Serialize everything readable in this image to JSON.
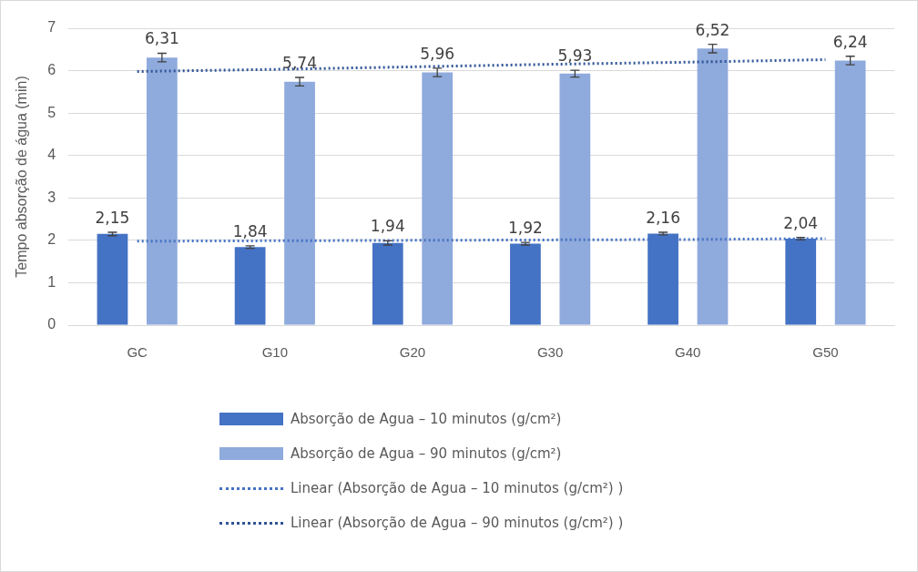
{
  "chart_data": {
    "type": "bar",
    "ylabel": "Tempo absorção de água (min)",
    "categories": [
      "GC",
      "G10",
      "G20",
      "G30",
      "G40",
      "G50"
    ],
    "series": [
      {
        "name": "Absorção de Agua – 10 minutos (g/cm²)",
        "color": "#4472c4",
        "values": [
          2.15,
          1.84,
          1.94,
          1.92,
          2.16,
          2.04
        ],
        "value_labels": [
          "2,15",
          "1,84",
          "1,94",
          "1,92",
          "2,16",
          "2,04"
        ],
        "errors": [
          0.04,
          0.03,
          0.05,
          0.03,
          0.03,
          0.03
        ]
      },
      {
        "name": "Absorção de Agua – 90 minutos (g/cm²)",
        "color": "#8faadc",
        "values": [
          6.31,
          5.74,
          5.96,
          5.93,
          6.52,
          6.24
        ],
        "value_labels": [
          "6,31",
          "5,74",
          "5,96",
          "5,93",
          "6,52",
          "6,24"
        ],
        "errors": [
          0.1,
          0.1,
          0.1,
          0.08,
          0.1,
          0.1
        ]
      },
      {
        "name": "Linear (Absorção de Agua – 10 minutos (g/cm²) )",
        "type": "line",
        "line_style": "dotted",
        "marker": "none",
        "color": "#4472c4",
        "values": [
          1.98,
          1.99,
          2.0,
          2.01,
          2.02,
          2.04
        ]
      },
      {
        "name": "Linear (Absorção de Agua – 90 minutos (g/cm²) )",
        "type": "line",
        "line_style": "dotted",
        "marker": "none",
        "color": "#2f5597",
        "values": [
          5.98,
          6.03,
          6.09,
          6.15,
          6.2,
          6.26
        ]
      }
    ],
    "ylim": [
      0,
      7
    ],
    "yticks": [
      0,
      1,
      2,
      3,
      4,
      5,
      6,
      7
    ],
    "grid": "y",
    "legend": "bottom"
  }
}
